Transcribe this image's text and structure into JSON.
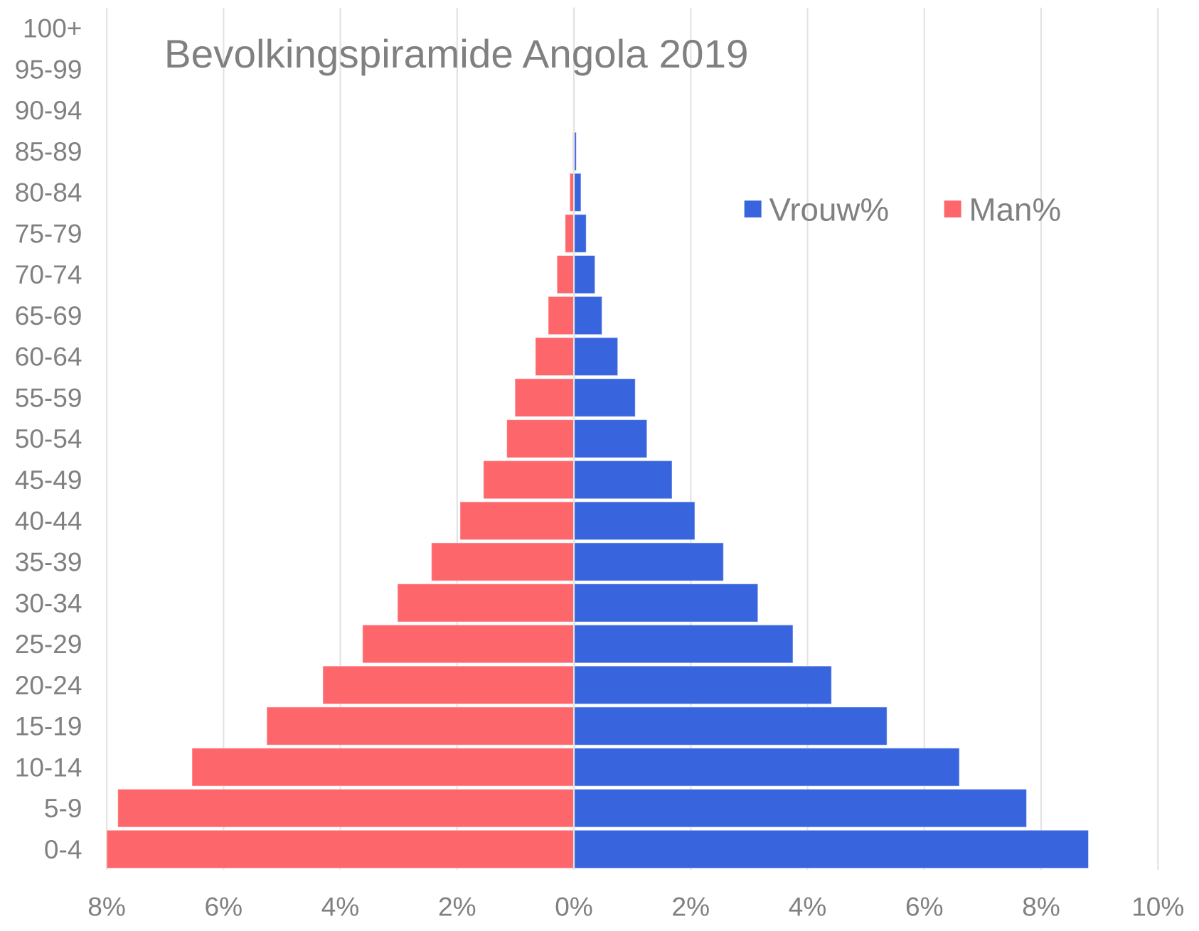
{
  "chart_data": {
    "type": "bar",
    "orientation": "horizontal",
    "title": "Bevolkingspiramide Angola 2019",
    "categories": [
      "0-4",
      "5-9",
      "10-14",
      "15-19",
      "20-24",
      "25-29",
      "30-34",
      "35-39",
      "40-44",
      "45-49",
      "50-54",
      "55-59",
      "60-64",
      "65-69",
      "70-74",
      "75-79",
      "80-84",
      "85-89",
      "90-94",
      "95-99",
      "100+"
    ],
    "series": [
      {
        "name": "Vrouw%",
        "color": "#3864DD",
        "side": "right",
        "values": [
          8.81,
          7.75,
          6.6,
          5.36,
          4.41,
          3.75,
          3.15,
          2.56,
          2.07,
          1.68,
          1.25,
          1.05,
          0.75,
          0.48,
          0.36,
          0.21,
          0.12,
          0.04,
          0,
          0,
          0
        ]
      },
      {
        "name": "Man%",
        "color": "#FD676B",
        "side": "left",
        "values": [
          8.0,
          7.81,
          6.54,
          5.26,
          4.3,
          3.62,
          3.02,
          2.44,
          1.95,
          1.55,
          1.15,
          1.01,
          0.66,
          0.44,
          0.29,
          0.15,
          0.07,
          0.02,
          0,
          0,
          0
        ]
      }
    ],
    "xlim": [
      -8,
      10
    ],
    "xticks": [
      -8,
      -6,
      -4,
      -2,
      0,
      2,
      4,
      6,
      8,
      10
    ],
    "xtick_labels": [
      "8%",
      "6%",
      "4%",
      "2%",
      "0%",
      "2%",
      "4%",
      "6%",
      "8%",
      "10%"
    ],
    "grid": "vertical",
    "legend_position": "top-right",
    "xlabel": "",
    "ylabel": ""
  }
}
